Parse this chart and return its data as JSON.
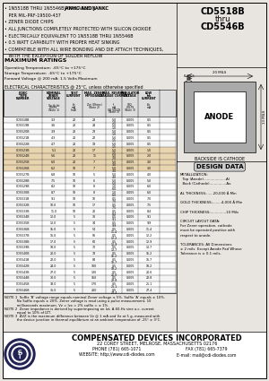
{
  "title_part": "CD5518B",
  "title_thru": "thru",
  "title_part2": "CD5546B",
  "bg_color": "#e8e5e0",
  "header_bullets": [
    [
      "1N5518B THRU 1N5546B AVAILABLE IN ",
      "JANHC AND JANKC",
      " PER MIL-PRF-19500-437"
    ],
    [
      "ZENER DIODE CHIPS"
    ],
    [
      "ALL JUNCTIONS COMPLETELY PROTECTED WITH SILICON DIOXIDE"
    ],
    [
      "ELECTRICALLY EQUIVALENT TO 1N5518B THRU 1N5546B"
    ],
    [
      "0.5 WATT CAPABILITY WITH PROPER HEAT SINKING"
    ],
    [
      "COMPATIBLE WITH ALL WIRE BONDING AND DIE ATTACH TECHNIQUES,"
    ],
    [
      "   WITH THE EXCEPTION OF SOLDER REFLOW"
    ]
  ],
  "max_ratings_title": "MAXIMUM RATINGS",
  "max_ratings": [
    "Operating Temperature: -65°C to +175°C",
    "Storage Temperature: -65°C to +175°C",
    "Forward Voltage @ 200 mA: 1.5 Volts Maximum"
  ],
  "elec_char_title": "ELECTRICAL CHARACTERISTICS @ 25°C, unless otherwise specified",
  "table_header_rows": [
    [
      "JEDEC\nTYPE\nNUMBER",
      "NOMINAL\nZENER\nVOLTAGE\nVz @ Izt\nVOLTS\n(Note 1)",
      "TEST\nCURRENT\nIzt\nmA",
      "MAX. ZENER\nIMPEDANCE\nZzt(Ohms)\n(Note 2)",
      "MAX. REVERSE\nLEAKAGE CURRENT\nIr\nmA    VR\n(Note 3)",
      "REGULATOR\nVOLTAGE\nVR2\nVOLTS\n(Note 3)",
      "LOW\nIzk\nCURRENT\nmA"
    ]
  ],
  "table_subheader": [
    "",
    "Vz @ Izt\nVOLTS\n(Note 1)",
    "Izt\nmA\n(mA)",
    "Zzt (Ohms)\n(Note 2)",
    "Ir\nmA    VR\nVOLTS  (Note 3)",
    "VR2\n(Note 3)",
    "Izk\nmA"
  ],
  "table_data": [
    [
      "CD5518B",
      "3.3",
      "20",
      "28",
      "5.0",
      "1.0",
      "0.005",
      "0.5"
    ],
    [
      "CD5519B",
      "3.6",
      "20",
      "24",
      "5.0",
      "1.0",
      "0.005",
      "0.5"
    ],
    [
      "CD5520B",
      "3.9",
      "20",
      "23",
      "5.0",
      "1.0",
      "0.005",
      "0.5"
    ],
    [
      "CD5521B",
      "4.3",
      "20",
      "22",
      "5.0",
      "1.5",
      "0.005",
      "0.5"
    ],
    [
      "CD5522B",
      "4.7",
      "20",
      "19",
      "5.0",
      "1.5",
      "0.005",
      "0.5"
    ],
    [
      "CD5523B",
      "5.1",
      "20",
      "17",
      "5.0",
      "1.5",
      "0.005",
      "1.0"
    ],
    [
      "CD5524B",
      "5.6",
      "20",
      "11",
      "5.0",
      "2.0",
      "0.005",
      "2.0"
    ],
    [
      "CD5525B",
      "6.0",
      "20",
      "7",
      "5.0",
      "3.0",
      "0.005",
      "3.0"
    ],
    [
      "CD5526B",
      "6.2",
      "10",
      "7",
      "5.0",
      "3.0",
      "0.005",
      "3.0"
    ],
    [
      "CD5527B",
      "6.8",
      "10",
      "5",
      "5.0",
      "4.0",
      "0.005",
      "4.0"
    ],
    [
      "CD5528B",
      "7.5",
      "10",
      "6",
      "5.0",
      "5.0",
      "0.005",
      "5.0"
    ],
    [
      "CD5529B",
      "8.2",
      "10",
      "8",
      "1.0",
      "6.0",
      "0.005",
      "6.0"
    ],
    [
      "CD5530B",
      "8.7",
      "10",
      "8",
      "1.0",
      "6.0",
      "0.005",
      "6.0"
    ],
    [
      "CD5531B",
      "9.1",
      "10",
      "10",
      "0.5",
      "7.0",
      "0.005",
      "7.0"
    ],
    [
      "CD5532B",
      "10.0",
      "10",
      "17",
      "0.5",
      "7.5",
      "0.005",
      "7.5"
    ],
    [
      "CD5533B",
      "11.0",
      "10",
      "22",
      "0.5",
      "8.4",
      "0.005",
      "8.4"
    ],
    [
      "CD5534B",
      "12.0",
      "5",
      "30",
      "0.5",
      "9.1",
      "0.005",
      "9.1"
    ],
    [
      "CD5535B",
      "13.0",
      "5",
      "34",
      "0.5",
      "9.9",
      "0.005",
      "9.9"
    ],
    [
      "CD5536B",
      "15.0",
      "5",
      "54",
      "0.5",
      "11.4",
      "0.005",
      "11.4"
    ],
    [
      "CD5537B",
      "16.0",
      "5",
      "56",
      "0.5",
      "12.2",
      "0.005",
      "12.2"
    ],
    [
      "CD5538B",
      "17.0",
      "5",
      "60",
      "0.5",
      "12.9",
      "0.005",
      "12.9"
    ],
    [
      "CD5539B",
      "18.0",
      "5",
      "70",
      "0.5",
      "13.7",
      "0.005",
      "13.7"
    ],
    [
      "CD5540B",
      "20.0",
      "5",
      "78",
      "0.5",
      "15.2",
      "0.005",
      "15.2"
    ],
    [
      "CD5541B",
      "22.0",
      "5",
      "84",
      "0.5",
      "16.7",
      "0.005",
      "16.7"
    ],
    [
      "CD5542B",
      "24.0",
      "5",
      "100",
      "0.5",
      "18.2",
      "0.005",
      "18.2"
    ],
    [
      "CD5543B",
      "27.0",
      "5",
      "130",
      "0.5",
      "20.6",
      "0.005",
      "20.6"
    ],
    [
      "CD5544B",
      "30.0",
      "5",
      "150",
      "0.5",
      "22.8",
      "0.005",
      "22.8"
    ],
    [
      "CD5545B",
      "33.0",
      "5",
      "170",
      "0.5",
      "25.1",
      "0.005",
      "25.1"
    ],
    [
      "CD5546B",
      "36.0",
      "5",
      "200",
      "0.5",
      "27.4",
      "0.005",
      "27.4"
    ]
  ],
  "highlighted_rows": [
    5,
    6,
    7,
    8
  ],
  "notes": [
    "NOTE 1  Suffix 'B' voltage range equals nominal Zener voltage ± 5%. Suffix 'A' equals ± 10%.",
    "           No Suffix equals ± 20%. Zener voltage is read using a pulse measurement, 10",
    "           milliseconds maximum. Vz = Izx = 2% suffix = ± 1%.",
    "NOTE 2  Zener impedance is derived by superimposing on Izt, A 60-Hz sine a.c. current",
    "           equal to 10% of IZT.",
    "NOTE 3  ΔVZ is the maximum difference between Vz @ 1 mA and Vz at 5 g, measured with",
    "           the device junction in thermal equilibrium at an ambient temperature of -25° ± 3°C."
  ],
  "design_data_title": "DESIGN DATA",
  "design_data_lines": [
    "METALLIZATION:",
    "  Top (Anode)....................Al",
    "  Back (Cathode)...............Au",
    "",
    "AL THICKNESS:......20,000 Å Min",
    "",
    "GOLD THICKNESS:........4,000 Å Min",
    "",
    "CHIP THICKNESS:..............10 Mils",
    "",
    "CIRCUIT LAYOUT DATA:",
    "For Zener operation, cathode",
    "must be operated positive with",
    "respect to anode.",
    "",
    "TOLERANCES: All Dimensions",
    "± 2 mils. Except Anode Pad Whose",
    "Tolerance is ± 0.1 mils."
  ],
  "footer_company": "COMPENSATED DEVICES INCORPORATED",
  "footer_address": "22 COREY STREET, MELROSE, MASSACHUSETTS 02176",
  "footer_phone": "PHONE (781) 665-1071",
  "footer_fax": "FAX (781) 665-7379",
  "footer_website": "WEBSITE: http://www.cdi-diodes.com",
  "footer_email": "E-mail: mail@cdi-diodes.com",
  "anode_label": "ANODE",
  "cathode_label": "BACKSIDE IS CATHODE",
  "dim_outer": "20 MILS",
  "dim_border": "8 MILS",
  "dim_side": "13 MILS"
}
